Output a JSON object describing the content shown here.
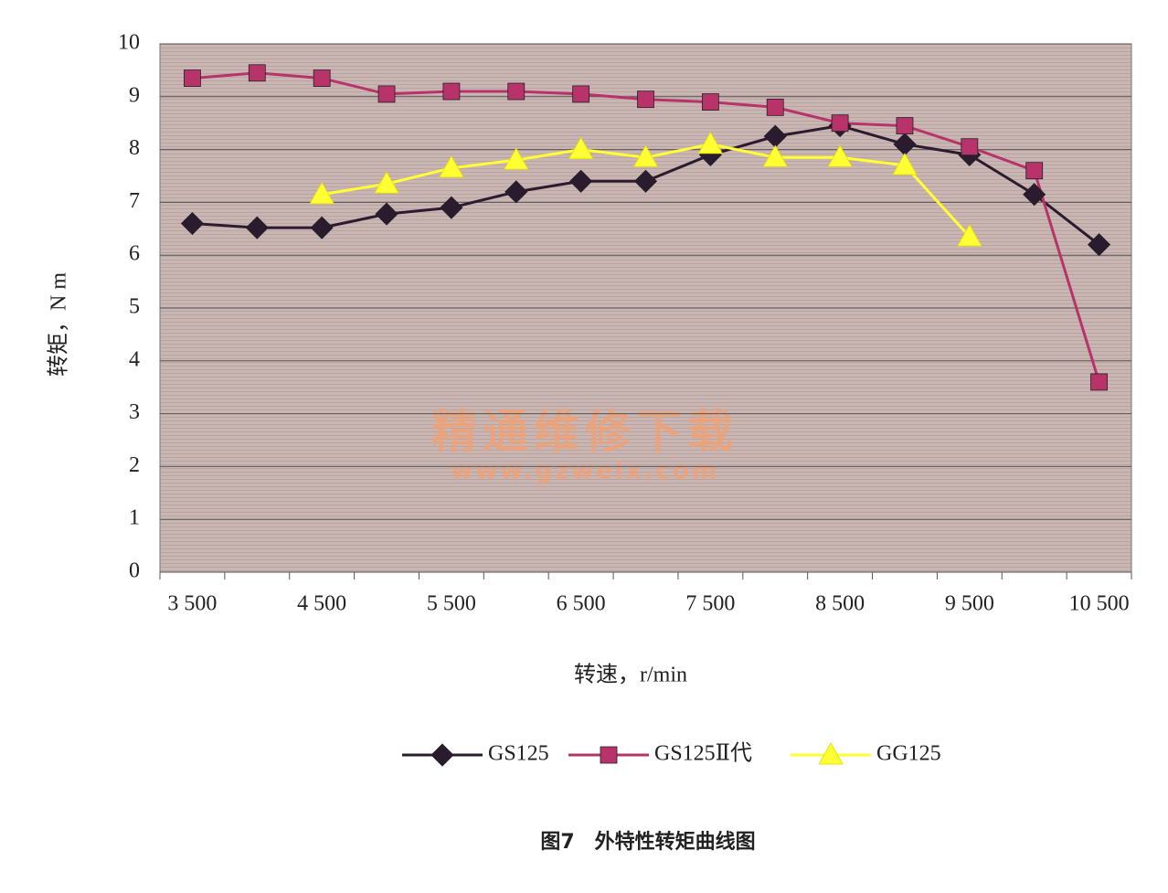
{
  "chart_data": {
    "type": "line",
    "categories": [
      "3 500",
      null,
      "4 500",
      null,
      "5 500",
      null,
      "6 500",
      null,
      "7 500",
      null,
      "8 500",
      null,
      "9 500",
      null,
      "10 500"
    ],
    "series": [
      {
        "name": "GS125",
        "color": "#2b1b2f",
        "marker": "diamond",
        "values": [
          6.6,
          6.52,
          6.52,
          6.78,
          6.9,
          7.2,
          7.4,
          7.4,
          7.9,
          8.25,
          8.45,
          8.1,
          7.9,
          7.15,
          6.2
        ]
      },
      {
        "name": "GS125Ⅱ代",
        "color": "#b8336a",
        "marker": "square",
        "values": [
          9.35,
          9.45,
          9.35,
          9.05,
          9.1,
          9.1,
          9.05,
          8.95,
          8.9,
          8.8,
          8.5,
          8.45,
          8.05,
          7.6,
          3.6
        ]
      },
      {
        "name": "GG125",
        "color": "#ffff33",
        "marker": "triangle",
        "values": [
          null,
          null,
          7.15,
          7.35,
          7.65,
          7.8,
          8.0,
          7.85,
          8.1,
          7.85,
          7.85,
          7.7,
          6.35,
          null,
          null
        ]
      }
    ],
    "ylim": [
      0,
      10
    ],
    "yticks": [
      0,
      1,
      2,
      3,
      4,
      5,
      6,
      7,
      8,
      9,
      10
    ],
    "grid": true,
    "y_label": "转矩，N m",
    "x_label": "转速，r/min",
    "caption": "图7　外特性转矩曲线图",
    "watermark": "精通维修下载",
    "watermark_url": "www.gzweix.com",
    "legend": "bottom"
  }
}
